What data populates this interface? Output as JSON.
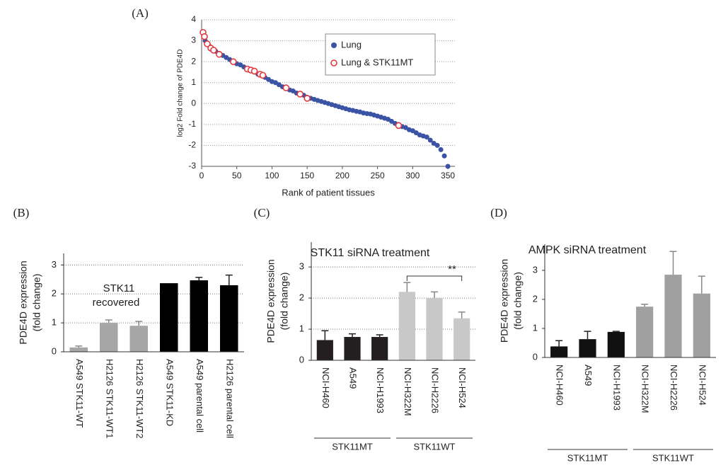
{
  "chart_data": [
    {
      "type": "scatter",
      "label": "(A)",
      "xlabel": "Rank of patient tissues",
      "ylabel": "log2 Fold change of PDE4D",
      "xlim": [
        0,
        360
      ],
      "xticks": [
        0,
        50,
        100,
        150,
        200,
        250,
        300,
        350
      ],
      "ylim": [
        -3,
        4
      ],
      "yticks": [
        -3,
        -2,
        -1,
        0,
        1,
        2,
        3,
        4
      ],
      "grid": true,
      "legend": "upper right",
      "series": [
        {
          "name": "Lung",
          "color": "#3a53a4",
          "marker": "filled",
          "x": [
            1,
            5,
            10,
            15,
            20,
            25,
            30,
            35,
            40,
            45,
            50,
            55,
            60,
            65,
            70,
            75,
            80,
            85,
            90,
            95,
            100,
            105,
            110,
            115,
            120,
            125,
            130,
            135,
            140,
            145,
            150,
            155,
            160,
            165,
            170,
            175,
            180,
            185,
            190,
            195,
            200,
            205,
            210,
            215,
            220,
            225,
            230,
            235,
            240,
            245,
            250,
            255,
            260,
            265,
            270,
            275,
            280,
            285,
            290,
            295,
            300,
            305,
            310,
            315,
            320,
            325,
            330,
            335,
            340,
            345,
            350
          ],
          "values": [
            3.4,
            3.0,
            2.8,
            2.6,
            2.5,
            2.4,
            2.3,
            2.2,
            2.1,
            2.0,
            1.9,
            1.85,
            1.75,
            1.65,
            1.6,
            1.5,
            1.4,
            1.35,
            1.25,
            1.15,
            1.05,
            1.0,
            0.9,
            0.8,
            0.75,
            0.65,
            0.6,
            0.5,
            0.45,
            0.4,
            0.3,
            0.25,
            0.2,
            0.15,
            0.1,
            0.05,
            0.0,
            -0.05,
            -0.1,
            -0.15,
            -0.2,
            -0.25,
            -0.3,
            -0.33,
            -0.37,
            -0.4,
            -0.45,
            -0.48,
            -0.5,
            -0.55,
            -0.6,
            -0.65,
            -0.7,
            -0.75,
            -0.85,
            -0.95,
            -1.0,
            -1.1,
            -1.15,
            -1.25,
            -1.3,
            -1.4,
            -1.5,
            -1.55,
            -1.6,
            -1.75,
            -1.9,
            -2.0,
            -2.2,
            -2.5,
            -3.0
          ]
        },
        {
          "name": "Lung & STK11MT",
          "color": "#e0393e",
          "marker": "hollow",
          "x": [
            2,
            4,
            8,
            13,
            17,
            25,
            45,
            65,
            70,
            75,
            83,
            87,
            120,
            140,
            150,
            280
          ],
          "values": [
            3.4,
            3.2,
            2.85,
            2.65,
            2.55,
            2.35,
            2.0,
            1.65,
            1.6,
            1.55,
            1.4,
            1.35,
            0.75,
            0.45,
            0.25,
            -1.05
          ]
        }
      ]
    },
    {
      "type": "bar",
      "label": "(B)",
      "ylabel": [
        "PDE4D expression",
        "(fold change)"
      ],
      "annotation": [
        "STK11",
        "recovered"
      ],
      "categories": [
        "A549 STK11-WT",
        "H2126 STK11-WT1",
        "H2126 STK11-WT2",
        "A549  STK11-KD",
        "A549 parental cell",
        "H2126 parental cell"
      ],
      "values": [
        0.15,
        1.0,
        0.9,
        2.37,
        2.47,
        2.3
      ],
      "errors": [
        0.05,
        0.1,
        0.15,
        0,
        0.1,
        0.35
      ],
      "colors": [
        "#a6a6a6",
        "#a6a6a6",
        "#a6a6a6",
        "#000000",
        "#000000",
        "#000000"
      ],
      "ylim": [
        0,
        3.4
      ],
      "yticks": [
        0,
        1,
        2,
        3
      ],
      "grid": true
    },
    {
      "type": "bar",
      "label": "(C)",
      "title": "STK11 siRNA treatment",
      "ylabel": [
        "PDE4D expression",
        "(fold change)"
      ],
      "annotation": "**",
      "categories": [
        "NCI-H460",
        "A549",
        "NCI-H1993",
        "NCI-H322M",
        "NCI-H2226",
        "NCI-H524"
      ],
      "values": [
        0.65,
        0.75,
        0.75,
        2.2,
        2.0,
        1.35
      ],
      "errors": [
        0.3,
        0.1,
        0.07,
        0.3,
        0.2,
        0.2
      ],
      "colors": [
        "#231f20",
        "#231f20",
        "#231f20",
        "#c8c8c8",
        "#c8c8c8",
        "#c8c8c8"
      ],
      "group_labels": [
        "STK11MT",
        "STK11WT"
      ],
      "ylim": [
        0,
        3.8
      ],
      "yticks": [
        0,
        1,
        2,
        3
      ],
      "grid": true
    },
    {
      "type": "bar",
      "label": "(D)",
      "title": "AMPK siRNA treatment",
      "ylabel": [
        "PDE4D expression",
        "(fold change)"
      ],
      "categories": [
        "NCI-H460",
        "A549",
        "NCI-H1993",
        "NCI-H322M",
        "NCI-H2226",
        "NCI-H524"
      ],
      "values": [
        0.38,
        0.63,
        0.88,
        1.75,
        2.85,
        2.2
      ],
      "errors": [
        0.2,
        0.27,
        0.02,
        0.08,
        0.8,
        0.6
      ],
      "colors": [
        "#111111",
        "#111111",
        "#111111",
        "#a0a0a0",
        "#a0a0a0",
        "#a0a0a0"
      ],
      "group_labels": [
        "STK11MT",
        "STK11WT"
      ],
      "ylim": [
        0,
        3.9
      ],
      "yticks": [
        0,
        1,
        2,
        3
      ],
      "grid": false
    }
  ]
}
